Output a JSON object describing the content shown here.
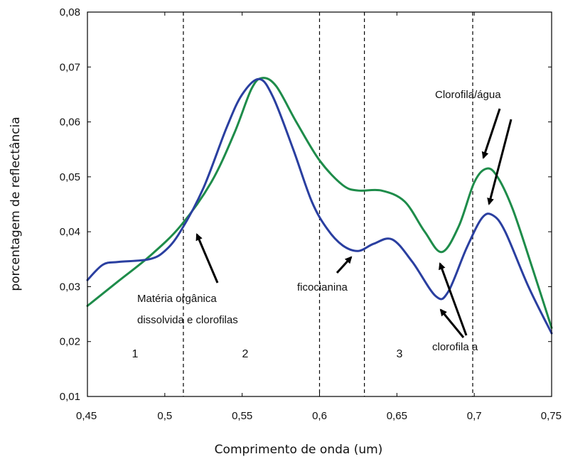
{
  "chart_data": {
    "type": "line",
    "title": "",
    "xlabel": "Comprimento de onda (um)",
    "ylabel": "porcentagem de reflectância",
    "xlim": [
      0.45,
      0.75
    ],
    "ylim": [
      0.01,
      0.08
    ],
    "grid": false,
    "x_ticks": [
      "0,45",
      "0,5",
      "0,55",
      "0,6",
      "0,65",
      "0,7",
      "0,75"
    ],
    "x_tick_values": [
      0.45,
      0.5,
      0.55,
      0.6,
      0.65,
      0.7,
      0.75
    ],
    "y_ticks": [
      "0,01",
      "0,02",
      "0,03",
      "0,04",
      "0,05",
      "0,06",
      "0,07",
      "0,08"
    ],
    "y_tick_values": [
      0.01,
      0.02,
      0.03,
      0.04,
      0.05,
      0.06,
      0.07,
      0.08
    ],
    "colors": {
      "green": "#1e8c4a",
      "blue": "#2a3fa0"
    },
    "series": [
      {
        "color": "green",
        "points": [
          [
            0.45,
            0.0265
          ],
          [
            0.47,
            0.031
          ],
          [
            0.49,
            0.0355
          ],
          [
            0.51,
            0.041
          ],
          [
            0.53,
            0.049
          ],
          [
            0.545,
            0.058
          ],
          [
            0.556,
            0.066
          ],
          [
            0.563,
            0.068
          ],
          [
            0.572,
            0.0665
          ],
          [
            0.585,
            0.06
          ],
          [
            0.6,
            0.053
          ],
          [
            0.615,
            0.0485
          ],
          [
            0.625,
            0.0475
          ],
          [
            0.64,
            0.0475
          ],
          [
            0.655,
            0.0455
          ],
          [
            0.668,
            0.04
          ],
          [
            0.679,
            0.0363
          ],
          [
            0.69,
            0.041
          ],
          [
            0.7,
            0.049
          ],
          [
            0.708,
            0.0515
          ],
          [
            0.715,
            0.05
          ],
          [
            0.725,
            0.044
          ],
          [
            0.738,
            0.033
          ],
          [
            0.75,
            0.0225
          ]
        ]
      },
      {
        "color": "blue",
        "points": [
          [
            0.45,
            0.0312
          ],
          [
            0.46,
            0.034
          ],
          [
            0.47,
            0.0345
          ],
          [
            0.49,
            0.035
          ],
          [
            0.5,
            0.0365
          ],
          [
            0.51,
            0.04
          ],
          [
            0.525,
            0.048
          ],
          [
            0.54,
            0.059
          ],
          [
            0.55,
            0.065
          ],
          [
            0.561,
            0.0678
          ],
          [
            0.57,
            0.0645
          ],
          [
            0.583,
            0.055
          ],
          [
            0.595,
            0.0455
          ],
          [
            0.605,
            0.0405
          ],
          [
            0.615,
            0.0375
          ],
          [
            0.625,
            0.0365
          ],
          [
            0.635,
            0.0378
          ],
          [
            0.647,
            0.0386
          ],
          [
            0.66,
            0.0345
          ],
          [
            0.675,
            0.0283
          ],
          [
            0.683,
            0.029
          ],
          [
            0.695,
            0.037
          ],
          [
            0.705,
            0.0425
          ],
          [
            0.712,
            0.043
          ],
          [
            0.72,
            0.04
          ],
          [
            0.735,
            0.03
          ],
          [
            0.75,
            0.0215
          ]
        ]
      }
    ],
    "dividers_x": [
      0.512,
      0.6,
      0.629,
      0.699
    ],
    "regions": [
      "1",
      "2",
      "3"
    ],
    "annotations": [
      "Matéria orgânica",
      "dissolvida e clorofilas",
      "ficocianina",
      "Clorofila/água",
      "clorofila a"
    ]
  }
}
